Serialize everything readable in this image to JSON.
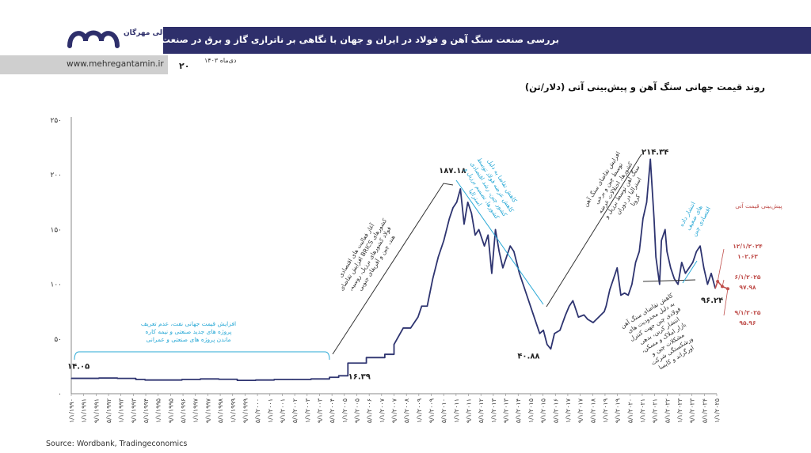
{
  "header": {
    "title": "بررسی صنعت سنگ آهن و فولاد در ایران و جهان با نگاهی بر ناترازی گاز و برق در صنعت فولاد",
    "date": "دی‌ماه ۱۴۰۳",
    "page_number": "۲۰",
    "website": "www.mehregantamin.ir",
    "logo_text": "گروه مالی مهرگان",
    "banner_color": "#2e2f6b"
  },
  "footer": {
    "source": "Source: Wordbank, Tradingeconomics"
  },
  "chart_data": {
    "type": "line",
    "title": "روند قیمت جهانی سنگ آهن و پیش‌بینی آتی (دلار/تن)",
    "ylim": [
      0,
      250
    ],
    "y_ticks": [
      "۰",
      "۵۰",
      "۱۰۰",
      "۱۵۰",
      "۲۰۰",
      "۲۵۰"
    ],
    "y_tick_values": [
      0,
      50,
      100,
      150,
      200,
      250
    ],
    "x_ticks": [
      "۱/۱/۱۹۹۰",
      "۱/۱/۱۹۹۱",
      "۹/۱/۱۹۹۱",
      "۵/۱/۱۹۹۲",
      "۱/۱/۱۹۹۳",
      "۹/۱/۱۹۹۳",
      "۵/۱/۱۹۹۴",
      "۱/۱/۱۹۹۵",
      "۹/۱/۱۹۹۵",
      "۵/۱/۱۹۹۶",
      "۱/۱/۱۹۹۷",
      "۹/۱/۱۹۹۷",
      "۵/۱/۱۹۹۸",
      "۱/۱/۱۹۹۹",
      "۹/۱/۱۹۹۹",
      "۵/۱/۲۰۰۰",
      "۱/۱/۲۰۰۱",
      "۹/۱/۲۰۰۱",
      "۵/۱/۲۰۰۲",
      "۱/۱/۲۰۰۳",
      "۹/۱/۲۰۰۳",
      "۵/۱/۲۰۰۴",
      "۱/۱/۲۰۰۵",
      "۹/۱/۲۰۰۵",
      "۵/۱/۲۰۰۶",
      "۱/۱/۲۰۰۷",
      "۹/۱/۲۰۰۷",
      "۵/۱/۲۰۰۸",
      "۱/۱/۲۰۰۹",
      "۹/۱/۲۰۰۹",
      "۵/۱/۲۰۱۰",
      "۱/۱/۲۰۱۱",
      "۹/۱/۲۰۱۱",
      "۵/۱/۲۰۱۲",
      "۱/۱/۲۰۱۳",
      "۹/۱/۲۰۱۳",
      "۵/۱/۲۰۱۴",
      "۱/۱/۲۰۱۵",
      "۹/۱/۲۰۱۵",
      "۵/۱/۲۰۱۶",
      "۱/۱/۲۰۱۷",
      "۹/۱/۲۰۱۷",
      "۵/۱/۲۰۱۸",
      "۱/۱/۲۰۱۹",
      "۹/۱/۲۰۱۹",
      "۵/۱/۲۰۲۰",
      "۱/۱/۲۰۲۱",
      "۹/۱/۲۰۲۱",
      "۵/۱/۲۰۲۲",
      "۱/۱/۲۰۲۳",
      "۹/۱/۲۰۲۳",
      "۵/۱/۲۰۲۴",
      "۱/۱/۲۰۲۵"
    ],
    "x_range": [
      1990.0,
      2025.0
    ],
    "grid": false,
    "line_color": "#2e3470",
    "forecast_color": "#c0504d",
    "annotation_color": "#2aa9d6",
    "series": [
      {
        "name": "",
        "x": [
          1990.0,
          1991.5,
          1992.5,
          1993.5,
          1994.0,
          1995.0,
          1996.0,
          1997.0,
          1998.0,
          1999.0,
          2000.0,
          2001.0,
          2002.0,
          2003.0,
          2004.0,
          2004.5,
          2005.0,
          2005.5,
          2006.0,
          2006.5,
          2007.0,
          2007.5,
          2008.0,
          2008.4,
          2008.8,
          2009.0,
          2009.3,
          2009.6,
          2009.9,
          2010.2,
          2010.5,
          2010.7,
          2010.9,
          2011.1,
          2011.3,
          2011.5,
          2011.7,
          2011.9,
          2012.1,
          2012.4,
          2012.6,
          2012.8,
          2013.0,
          2013.2,
          2013.4,
          2013.6,
          2013.8,
          2014.0,
          2014.3,
          2014.6,
          2014.9,
          2015.2,
          2015.4,
          2015.6,
          2015.8,
          2016.0,
          2016.2,
          2016.5,
          2016.8,
          2017.0,
          2017.2,
          2017.5,
          2017.8,
          2018.0,
          2018.3,
          2018.6,
          2018.9,
          2019.0,
          2019.2,
          2019.4,
          2019.6,
          2019.8,
          2020.0,
          2020.2,
          2020.4,
          2020.6,
          2020.8,
          2021.0,
          2021.2,
          2021.4,
          2021.6,
          2021.7,
          2021.9,
          2022.0,
          2022.2,
          2022.3,
          2022.5,
          2022.7,
          2022.9,
          2023.1,
          2023.3,
          2023.5,
          2023.7,
          2023.9,
          2024.1,
          2024.3,
          2024.5,
          2024.7,
          2024.92
        ],
        "values": [
          14.05,
          14.3,
          14.0,
          13.0,
          12.5,
          12.5,
          13.0,
          13.5,
          13.2,
          12.2,
          12.5,
          13.0,
          13.0,
          13.5,
          15.0,
          16.39,
          28.0,
          28.0,
          33.0,
          33.0,
          36.0,
          45.0,
          60.0,
          60.0,
          70.0,
          80.0,
          80.0,
          105.0,
          125.0,
          140.0,
          160.0,
          170.0,
          175.0,
          187.18,
          155.0,
          175.0,
          165.0,
          145.0,
          150.0,
          135.0,
          145.0,
          110.0,
          150.0,
          130.0,
          115.0,
          125.0,
          135.0,
          130.0,
          110.0,
          95.0,
          80.0,
          65.0,
          55.0,
          58.0,
          45.0,
          40.88,
          55.0,
          58.0,
          72.0,
          80.0,
          85.0,
          70.0,
          72.0,
          68.0,
          65.0,
          70.0,
          75.0,
          80.0,
          95.0,
          105.0,
          115.0,
          90.0,
          92.0,
          90.0,
          100.0,
          120.0,
          130.0,
          160.0,
          175.0,
          214.34,
          160.0,
          125.0,
          100.0,
          140.0,
          150.0,
          130.0,
          115.0,
          105.0,
          100.0,
          120.0,
          110.0,
          115.0,
          120.0,
          130.0,
          135.0,
          115.0,
          100.0,
          110.0,
          96.24
        ]
      },
      {
        "name": "پیش‌بینی قیمت آتی",
        "x": [
          2024.92,
          2025.05,
          2025.3,
          2025.6
        ],
        "values": [
          96.24,
          102.63,
          97.98,
          95.96
        ]
      }
    ],
    "data_labels": [
      {
        "text": "۱۴.۰۵",
        "x": 1990.0,
        "y": 14.05
      },
      {
        "text": "۱۶.۳۹",
        "x": 2004.5,
        "y": 16.39
      },
      {
        "text": "۱۸۷.۱۸",
        "x": 2011.1,
        "y": 187.18
      },
      {
        "text": "۴۰.۸۸",
        "x": 2016.0,
        "y": 40.88
      },
      {
        "text": "۲۱۴.۳۴",
        "x": 2021.4,
        "y": 214.34
      },
      {
        "text": "۹۶.۲۴",
        "x": 2024.92,
        "y": 96.24
      }
    ],
    "forecast_legend": "پیش‌بینی قیمت آتی",
    "forecast_points": [
      {
        "date": "۱۲/۱/۲۰۲۴",
        "value": "۱۰۲.۶۳"
      },
      {
        "date": "۶/۱/۲۰۲۵",
        "value": "۹۷.۹۸"
      },
      {
        "date": "۹/۱/۲۰۲۵",
        "value": "۹۵.۹۶"
      }
    ],
    "annotations": [
      "افزایش قیمت جهانی نفت، عدم تعریف پروژه های جدید صنعتی و نیمه کاره ماندن پروژه های صنعتی و عمرانی",
      "آغاز فعالیت های اقتصادی کشورهای BRICS افزایش تقاضای فولاد کشورهای برزیل، روسیه، هند، چین و آفریقای جنوبی",
      "کاهش تقاضا به دلیل کاهش عرضه فولاد توسط کشور چین، رشد اقتصادی کشورها، تصمیم برزیل و استرالیا",
      "افزایش تقاضای سنگ آهن توسط چین و برخی کشورها، اختلالات عرضه سنگ آهن توسط برزیل و استرالیا در دوران کرونا",
      "کاهش تقاضای سنگ آهن به دلیل محدودیت های فولادی چین جهت کنترل انتشار کربن، بدهی بازار املاک و مسکن، مشکلات چین و ورشکستگی شرکت اورگراند و کایسا",
      "انتشار داده های ضعیف اقتصادی چین"
    ]
  }
}
